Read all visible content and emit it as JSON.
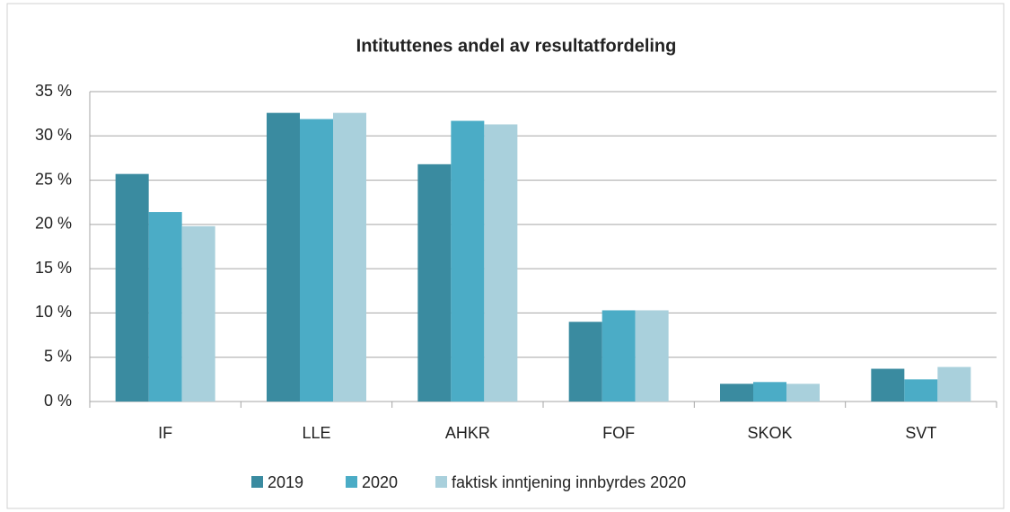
{
  "chart_data": {
    "type": "bar",
    "title": "Intituttenes andel av resultatfordeling",
    "categories": [
      "IF",
      "LLE",
      "AHKR",
      "FOF",
      "SKOK",
      "SVT"
    ],
    "series": [
      {
        "name": "2019",
        "color": "#3a8ba0",
        "values": [
          25.7,
          32.6,
          26.8,
          9.0,
          2.0,
          3.7
        ]
      },
      {
        "name": "2020",
        "color": "#4bacc6",
        "values": [
          21.4,
          31.9,
          31.7,
          10.3,
          2.2,
          2.5
        ]
      },
      {
        "name": "faktisk inntjening innbyrdes 2020",
        "color": "#a9d0dc",
        "values": [
          19.8,
          32.6,
          31.3,
          10.3,
          2.0,
          3.9
        ]
      }
    ],
    "ylim": [
      0,
      35
    ],
    "yticks": [
      {
        "value": 0,
        "label": "0 %"
      },
      {
        "value": 5,
        "label": "5 %"
      },
      {
        "value": 10,
        "label": "10 %"
      },
      {
        "value": 15,
        "label": "15 %"
      },
      {
        "value": 20,
        "label": "20 %"
      },
      {
        "value": 25,
        "label": "25 %"
      },
      {
        "value": 30,
        "label": "30 %"
      },
      {
        "value": 35,
        "label": "35 %"
      }
    ],
    "grid": true,
    "legend": "bottom"
  }
}
